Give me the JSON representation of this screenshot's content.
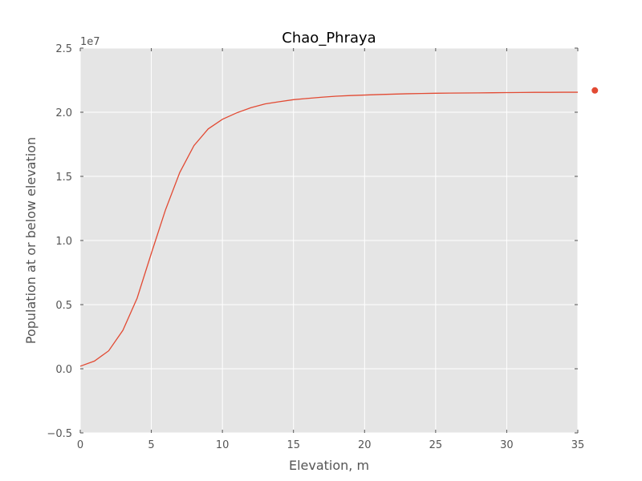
{
  "chart_data": {
    "type": "line",
    "title": "Chao_Phraya",
    "xlabel": "Elevation, m",
    "ylabel": "Population at or below elevation",
    "y_offset_label": "1e7",
    "xlim": [
      0,
      35
    ],
    "ylim": [
      -0.5,
      2.5
    ],
    "x_ticks": [
      0,
      5,
      10,
      15,
      20,
      25,
      30,
      35
    ],
    "x_tick_labels": [
      "0",
      "5",
      "10",
      "15",
      "20",
      "25",
      "30",
      "35"
    ],
    "y_ticks": [
      -0.5,
      0.0,
      0.5,
      1.0,
      1.5,
      2.0,
      2.5
    ],
    "y_tick_labels": [
      "−0.5",
      "0.0",
      "0.5",
      "1.0",
      "1.5",
      "2.0",
      "2.5"
    ],
    "grid": true,
    "colors": {
      "series": "#e24a33",
      "background": "#e5e5e5",
      "grid": "#ffffff"
    },
    "series": [
      {
        "x": [
          0,
          1,
          2,
          3,
          4,
          5,
          6,
          7,
          8,
          9,
          10,
          11,
          12,
          13,
          14,
          15,
          16,
          17,
          18,
          19,
          20,
          21,
          22,
          23,
          24,
          25,
          26,
          27,
          28,
          29,
          30,
          31,
          32,
          33,
          34,
          35
        ],
        "y": [
          0.02,
          0.06,
          0.14,
          0.3,
          0.55,
          0.9,
          1.24,
          1.53,
          1.74,
          1.87,
          1.945,
          1.995,
          2.035,
          2.065,
          2.082,
          2.098,
          2.108,
          2.117,
          2.125,
          2.13,
          2.134,
          2.138,
          2.141,
          2.144,
          2.146,
          2.148,
          2.149,
          2.15,
          2.151,
          2.152,
          2.153,
          2.154,
          2.155,
          2.155,
          2.156,
          2.156
        ]
      }
    ],
    "outlier_points": [
      {
        "x": 36.2,
        "y": 2.17
      }
    ]
  }
}
